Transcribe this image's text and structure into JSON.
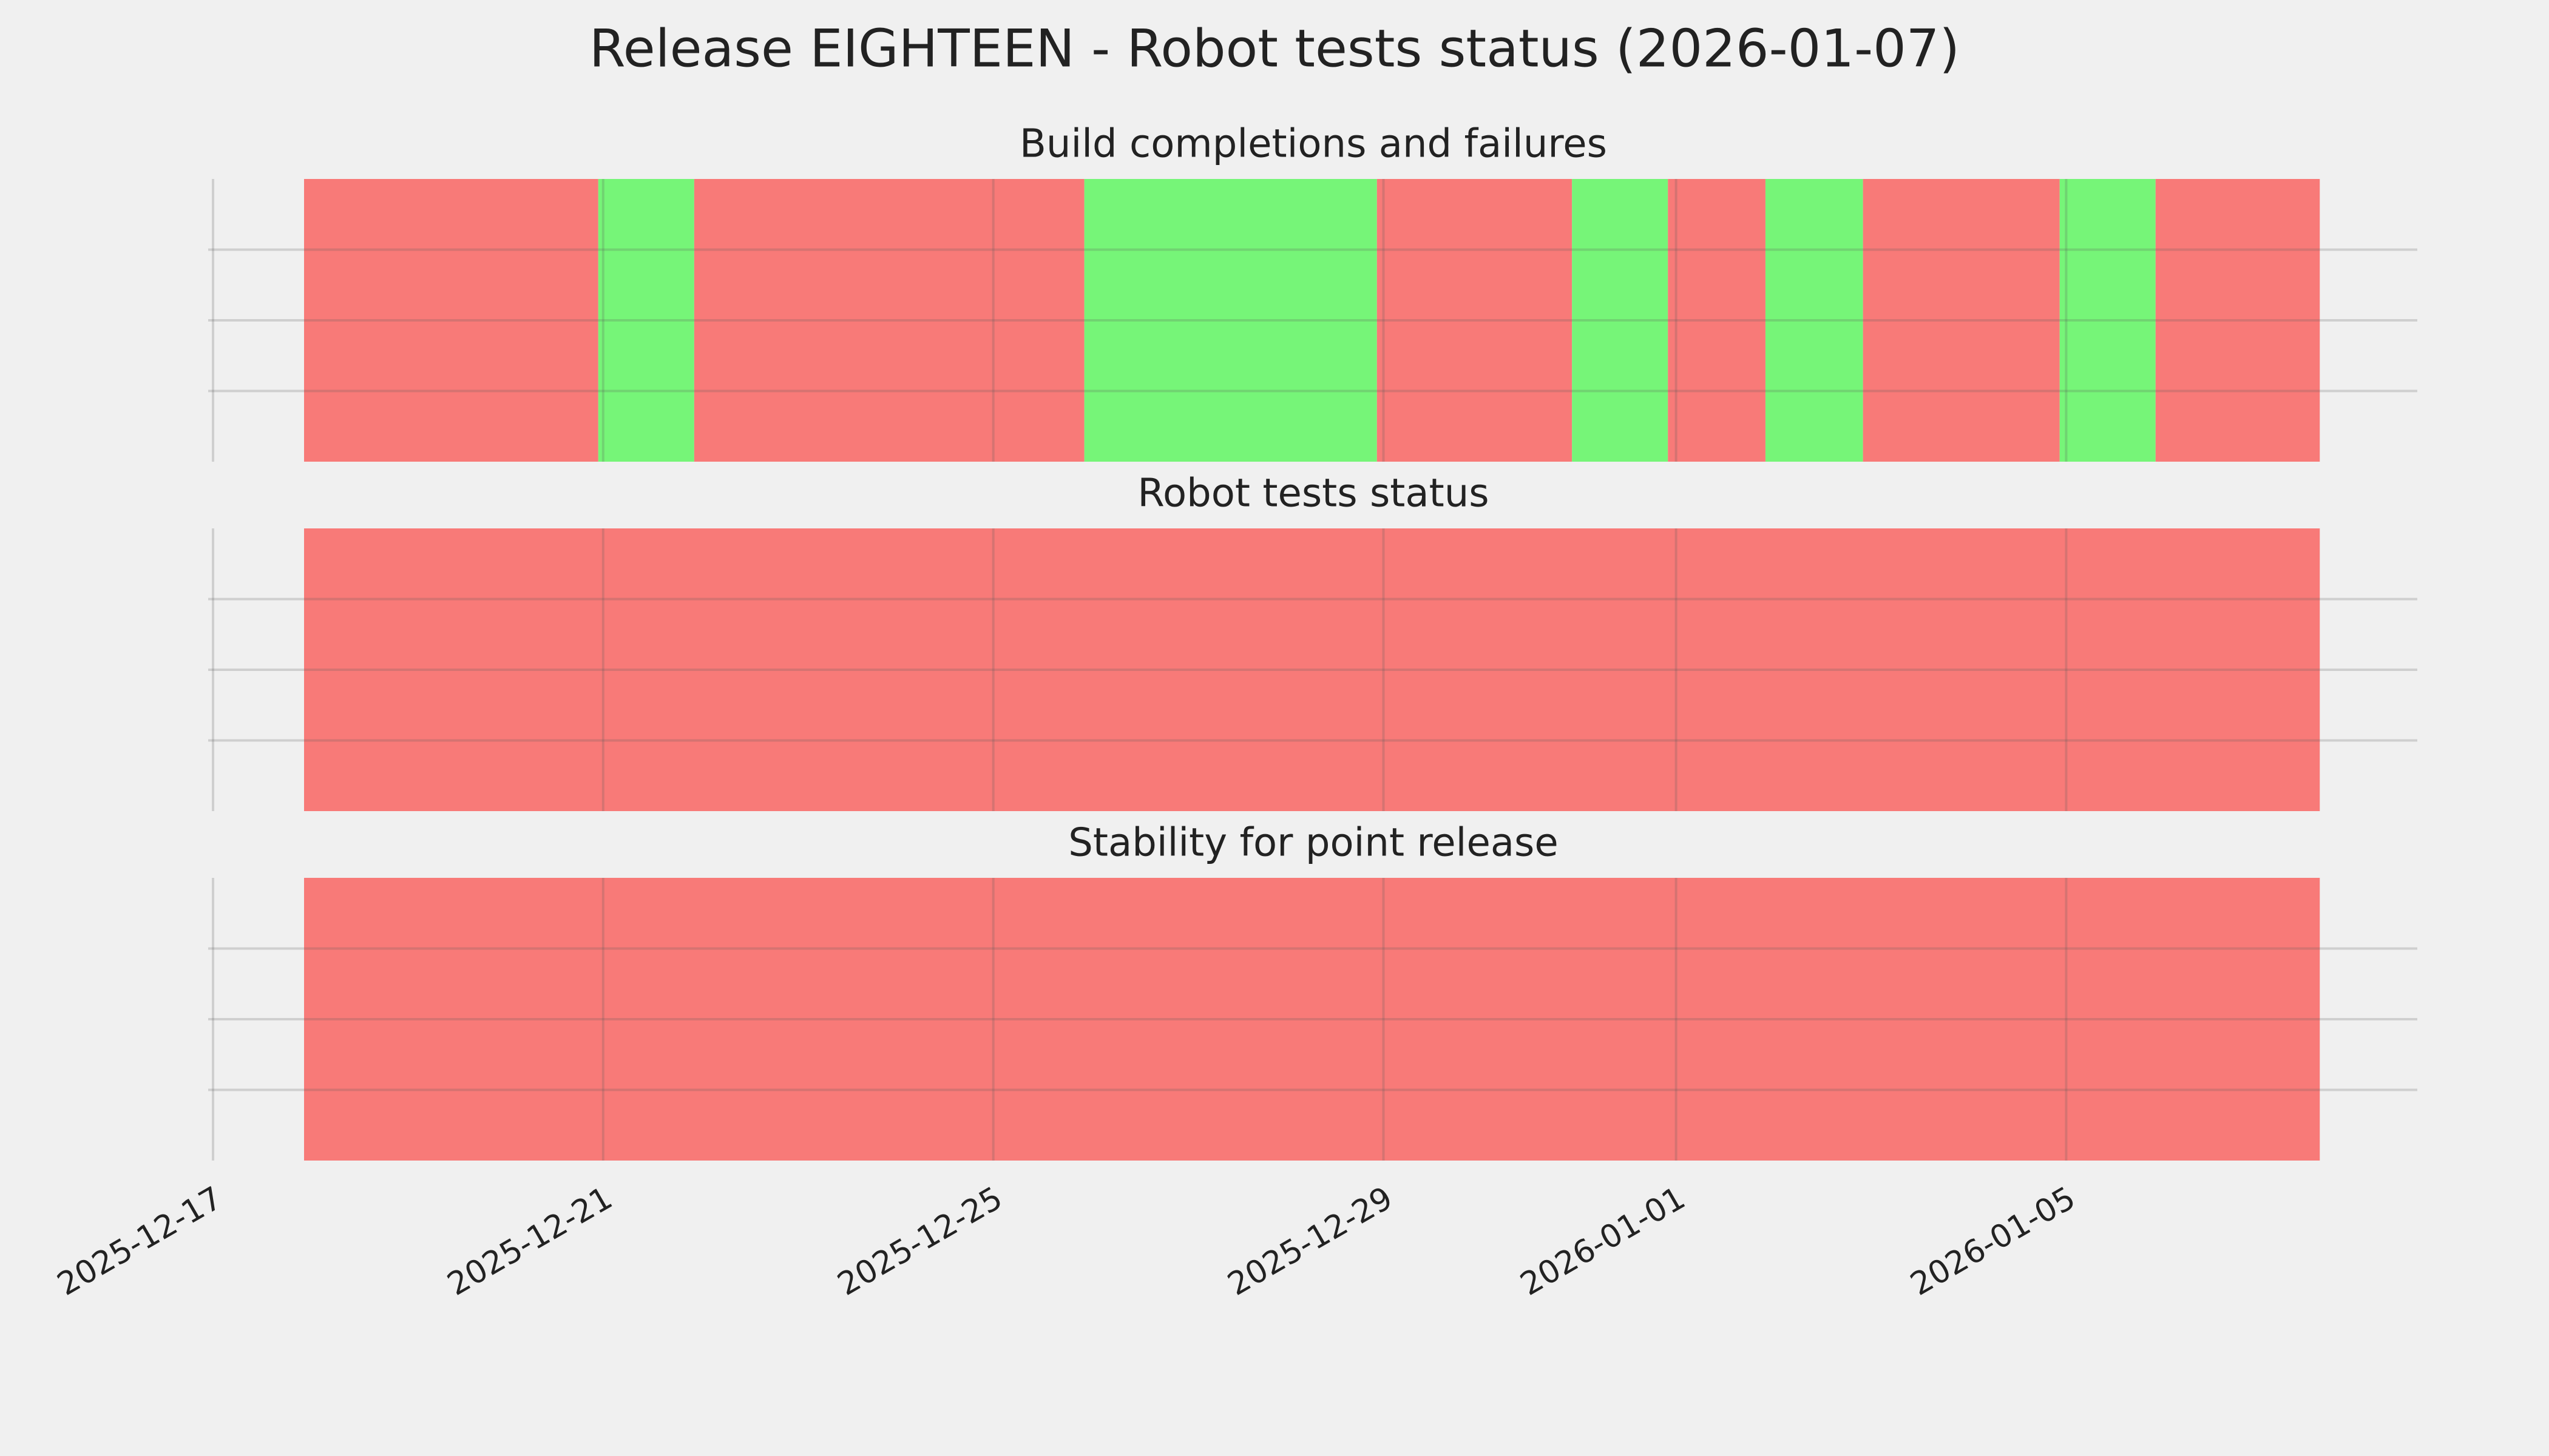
{
  "chart_data": [
    {
      "type": "timeline",
      "title": "Release EIGHTEEN - Robot tests status (2026-01-07)",
      "subtitle": "Build completions and failures",
      "x_start": [
        "2025-12-17T22:24",
        "2025-12-20T22:48",
        "2025-12-21T22:24",
        "2025-12-25T22:24",
        "2025-12-28T22:24",
        "2025-12-30T22:24",
        "2025-12-31T22:00",
        "2026-01-01T22:00",
        "2026-01-02T22:00",
        "2026-01-04T22:24",
        "2026-01-05T22:00"
      ],
      "x_end": [
        "2025-12-20T22:48",
        "2025-12-21T22:24",
        "2025-12-25T22:24",
        "2025-12-28T22:24",
        "2025-12-30T22:24",
        "2025-12-31T22:00",
        "2026-01-01T22:00",
        "2026-01-02T22:00",
        "2026-01-04T22:24",
        "2026-01-05T22:00",
        "2026-01-07T14:24"
      ],
      "colors": [
        "#f87a78",
        "#76f578",
        "#f87a78",
        "#76f578",
        "#f87a78",
        "#76f578",
        "#f87a78",
        "#76f578",
        "#f87a78",
        "#76f578",
        "#f87a78"
      ],
      "ylim": [
        0,
        4
      ],
      "yticks": [
        1,
        2,
        3
      ],
      "grid": true
    },
    {
      "type": "timeline",
      "subtitle": "Robot tests status",
      "x_start": [
        "2025-12-17T22:24"
      ],
      "x_end": [
        "2026-01-07T14:24"
      ],
      "colors": [
        "#f87a78"
      ],
      "ylim": [
        0,
        4
      ],
      "yticks": [
        1,
        2,
        3
      ],
      "grid": true
    },
    {
      "type": "timeline",
      "subtitle": "Stability for point release",
      "x_start": [
        "2025-12-17T22:24"
      ],
      "x_end": [
        "2026-01-07T14:24"
      ],
      "colors": [
        "#f87a78"
      ],
      "ylim": [
        0,
        4
      ],
      "yticks": [
        1,
        2,
        3
      ],
      "grid": true,
      "xlim": [
        "2025-12-17",
        "2026-01-08T14:24"
      ],
      "xticks": [
        "2025-12-17",
        "2025-12-21",
        "2025-12-25",
        "2025-12-29",
        "2026-01-01",
        "2026-01-05"
      ]
    }
  ]
}
